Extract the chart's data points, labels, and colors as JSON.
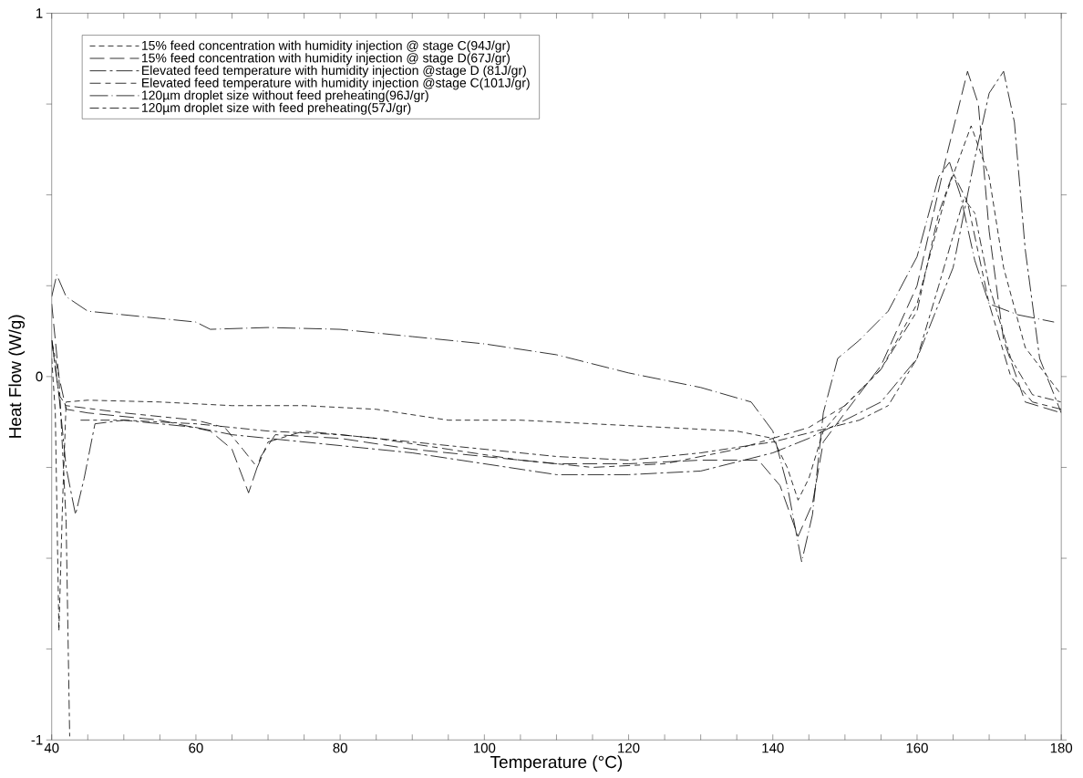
{
  "chart_data": {
    "type": "line",
    "xlabel": "Temperature (°C)",
    "ylabel": "Heat Flow (W/g)",
    "xlim": [
      40,
      180
    ],
    "ylim": [
      -1,
      1
    ],
    "xticks": [
      40,
      {
        "value": 45,
        "label": null
      },
      {
        "value": 50,
        "label": null
      },
      {
        "value": 55,
        "label": null
      },
      60,
      {
        "value": 65,
        "label": null
      },
      {
        "value": 70,
        "label": null
      },
      {
        "value": 75,
        "label": null
      },
      80,
      {
        "value": 85,
        "label": null
      },
      {
        "value": 90,
        "label": null
      },
      {
        "value": 95,
        "label": null
      },
      100,
      {
        "value": 105,
        "label": null
      },
      {
        "value": 110,
        "label": null
      },
      {
        "value": 115,
        "label": null
      },
      120,
      {
        "value": 125,
        "label": null
      },
      {
        "value": 130,
        "label": null
      },
      {
        "value": 135,
        "label": null
      },
      140,
      {
        "value": 145,
        "label": null
      },
      {
        "value": 150,
        "label": null
      },
      {
        "value": 155,
        "label": null
      },
      160,
      {
        "value": 165,
        "label": null
      },
      {
        "value": 170,
        "label": null
      },
      {
        "value": 175,
        "label": null
      },
      180
    ],
    "yticks": [
      -1,
      {
        "value": -0.75,
        "label": null
      },
      {
        "value": -0.5,
        "label": null
      },
      {
        "value": -0.25,
        "label": null
      },
      0,
      {
        "value": 0.25,
        "label": null
      },
      {
        "value": 0.5,
        "label": null
      },
      {
        "value": 0.75,
        "label": null
      },
      1
    ],
    "grid": false,
    "legend": "top left",
    "marker": "none",
    "series": [
      {
        "name": "15% feed concentration with humidity injection @ stage C(94J/gr)",
        "color": "#000000",
        "line_style": "dashed",
        "x": [
          40,
          40.5,
          41,
          41.5,
          42,
          45,
          55,
          65,
          75,
          85,
          95,
          105,
          115,
          125,
          135,
          140,
          142,
          143.5,
          145,
          147,
          150,
          155,
          160,
          164,
          167.5,
          170,
          172,
          175,
          180
        ],
        "values": [
          0.05,
          -0.1,
          -0.7,
          -0.35,
          -0.07,
          -0.065,
          -0.07,
          -0.08,
          -0.08,
          -0.09,
          -0.12,
          -0.12,
          -0.13,
          -0.14,
          -0.15,
          -0.17,
          -0.25,
          -0.34,
          -0.28,
          -0.15,
          -0.08,
          0.02,
          0.2,
          0.5,
          0.69,
          0.55,
          0.3,
          0.08,
          -0.05
        ]
      },
      {
        "name": "15% feed concentration with humidity injection @ stage D(67J/gr)",
        "color": "#000000",
        "line_style": "dashed",
        "x": [
          40,
          41,
          42,
          45,
          55,
          62,
          65,
          67.3,
          69,
          71,
          80,
          90,
          100,
          110,
          120,
          130,
          138,
          141,
          143.5,
          145.5,
          147,
          150,
          155,
          160,
          164,
          167,
          168.5,
          170,
          172,
          175,
          180
        ],
        "values": [
          0.2,
          0.0,
          -0.09,
          -0.1,
          -0.12,
          -0.15,
          -0.2,
          -0.32,
          -0.22,
          -0.16,
          -0.17,
          -0.2,
          -0.22,
          -0.24,
          -0.24,
          -0.23,
          -0.23,
          -0.3,
          -0.44,
          -0.35,
          -0.18,
          -0.1,
          0.03,
          0.25,
          0.6,
          0.84,
          0.75,
          0.4,
          0.1,
          -0.07,
          -0.1
        ]
      },
      {
        "name": "Elevated feed temperature with humidity injection @stage D (81J/gr)",
        "color": "#000000",
        "line_style": "dashdot",
        "x": [
          40,
          41,
          42,
          43.3,
          44.5,
          46,
          50,
          60,
          65,
          70,
          80,
          90,
          100,
          110,
          120,
          130,
          140,
          145,
          150,
          155,
          160,
          165,
          168,
          170,
          172,
          173.5,
          175,
          177,
          180
        ],
        "values": [
          0.1,
          -0.05,
          -0.25,
          -0.38,
          -0.28,
          -0.13,
          -0.12,
          -0.14,
          -0.16,
          -0.17,
          -0.19,
          -0.21,
          -0.24,
          -0.27,
          -0.27,
          -0.26,
          -0.21,
          -0.17,
          -0.12,
          -0.07,
          0.05,
          0.3,
          0.6,
          0.78,
          0.84,
          0.7,
          0.35,
          0.05,
          -0.1
        ]
      },
      {
        "name": "Elevated feed temperature with humidity injection @stage C(101J/gr)",
        "color": "#000000",
        "line_style": "dashed",
        "x": [
          40,
          41,
          42,
          50,
          60,
          64,
          66.5,
          68.5,
          70,
          75,
          85,
          95,
          105,
          115,
          125,
          135,
          145,
          150,
          155,
          160,
          163,
          165,
          167,
          170,
          173,
          176,
          180
        ],
        "values": [
          0.1,
          -0.05,
          -0.08,
          -0.1,
          -0.12,
          -0.14,
          -0.2,
          -0.25,
          -0.18,
          -0.15,
          -0.17,
          -0.2,
          -0.23,
          -0.25,
          -0.24,
          -0.2,
          -0.14,
          -0.08,
          0.02,
          0.18,
          0.45,
          0.56,
          0.48,
          0.2,
          0.0,
          -0.07,
          -0.09
        ]
      },
      {
        "name": "120µm droplet size without feed preheating(96J/gr)",
        "color": "#000000",
        "line_style": "dashdot",
        "x": [
          40,
          40.7,
          42,
          45,
          55,
          60,
          62,
          70,
          80,
          90,
          100,
          110,
          120,
          130,
          137,
          140,
          142,
          144,
          145.5,
          147,
          149,
          152,
          156,
          160,
          163,
          164.5,
          166,
          168,
          170,
          174,
          179
        ],
        "values": [
          0.22,
          0.28,
          0.22,
          0.18,
          0.16,
          0.15,
          0.13,
          0.135,
          0.13,
          0.11,
          0.09,
          0.06,
          0.01,
          -0.03,
          -0.07,
          -0.15,
          -0.3,
          -0.51,
          -0.38,
          -0.1,
          0.05,
          0.1,
          0.18,
          0.33,
          0.55,
          0.59,
          0.5,
          0.32,
          0.2,
          0.17,
          0.15
        ]
      },
      {
        "name": "120µm droplet size with feed preheating(57J/gr)",
        "color": "#000000",
        "line_style": "dashed",
        "x": [
          40,
          41,
          42,
          42.5,
          43,
          44,
          50,
          60,
          70,
          80,
          90,
          100,
          110,
          120,
          130,
          140,
          148,
          152,
          156,
          160,
          163,
          166.5,
          168,
          170,
          173,
          176,
          180
        ],
        "values": [
          0.1,
          0.0,
          -0.4,
          -1,
          null,
          -0.12,
          -0.12,
          -0.13,
          -0.15,
          -0.16,
          -0.18,
          -0.2,
          -0.22,
          -0.23,
          -0.21,
          -0.18,
          -0.14,
          -0.12,
          -0.08,
          0.05,
          0.25,
          0.49,
          0.45,
          0.25,
          0.05,
          -0.05,
          -0.07
        ]
      }
    ]
  }
}
